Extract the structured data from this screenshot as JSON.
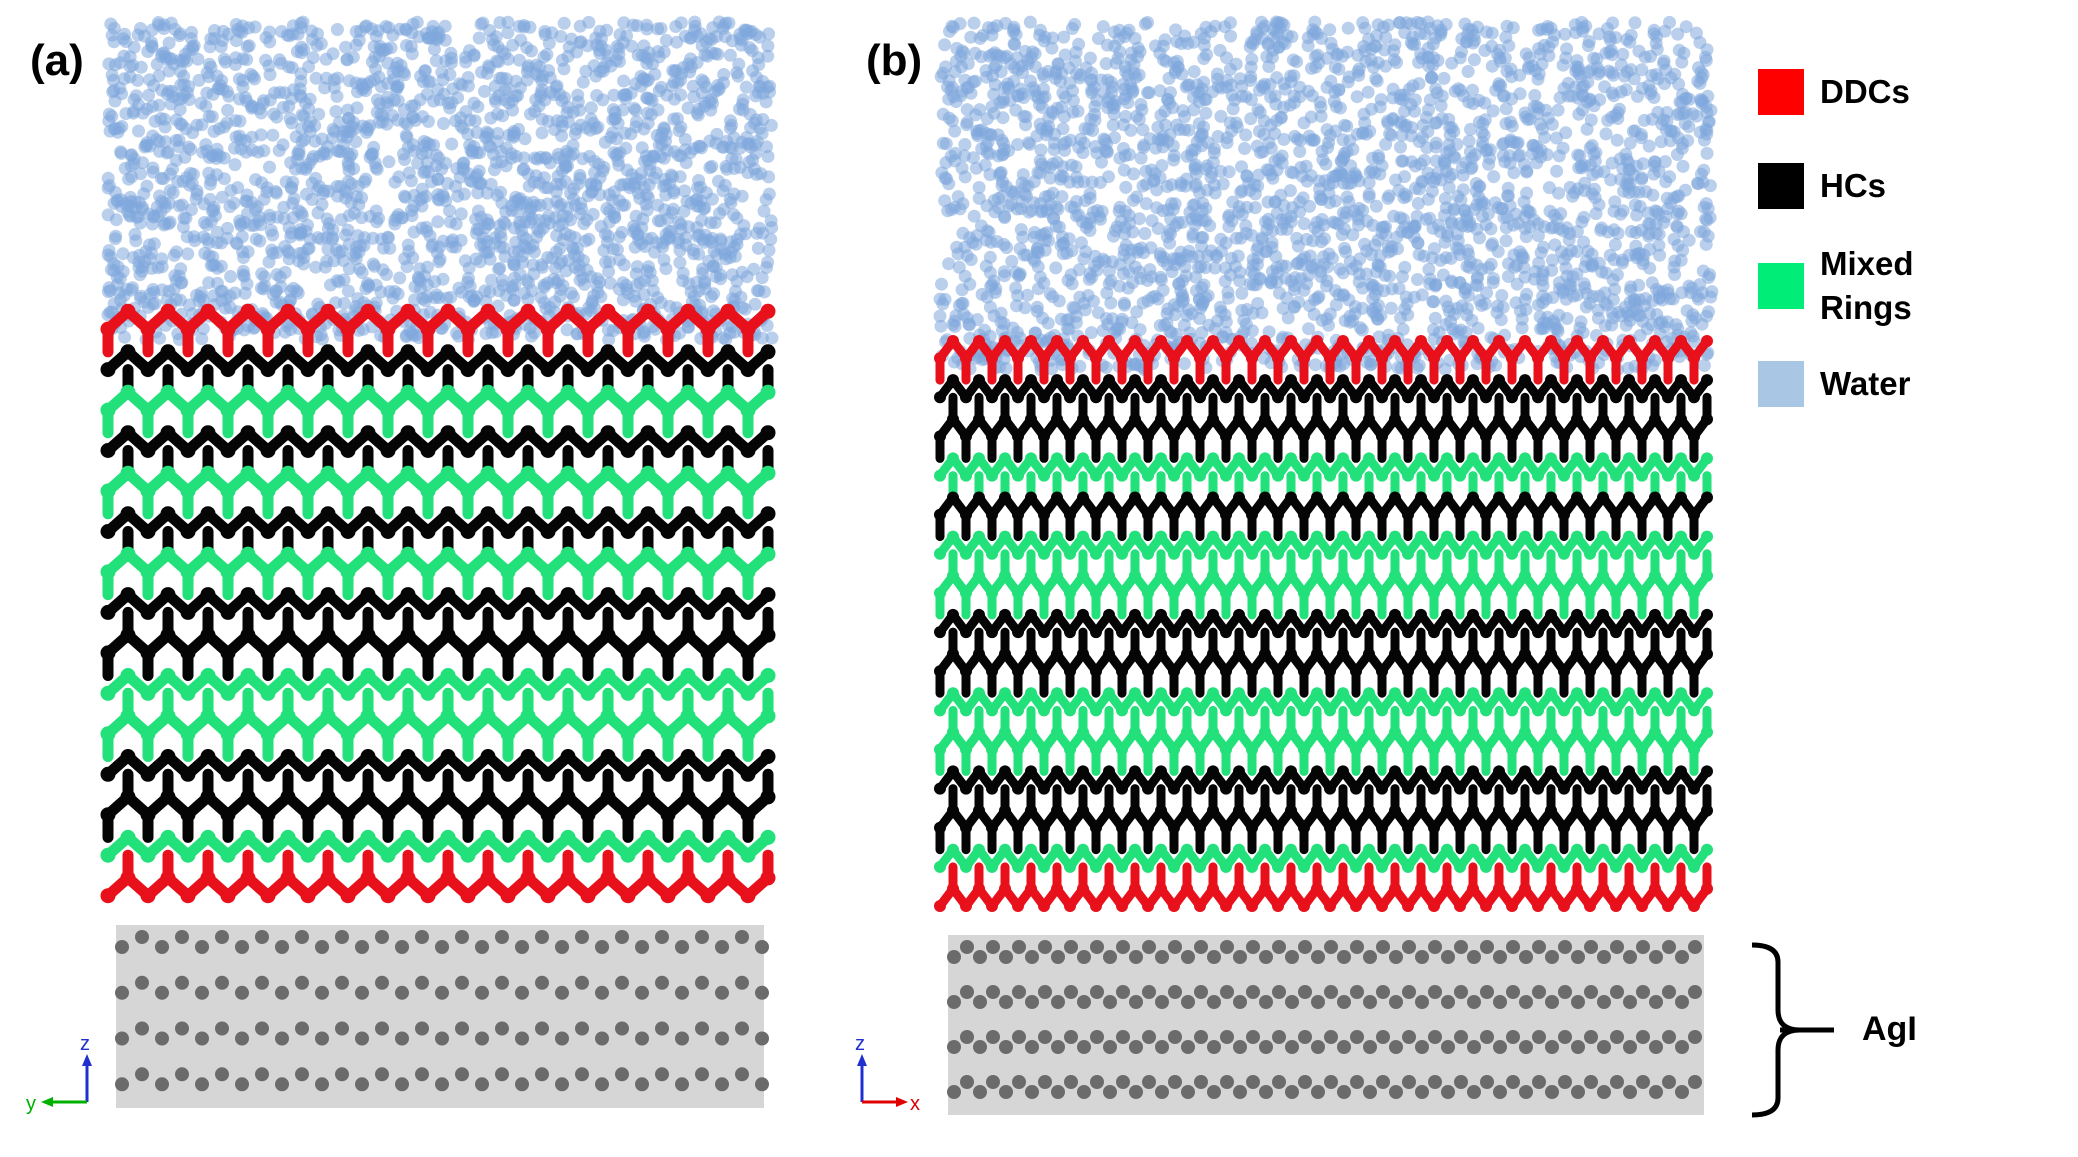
{
  "panels": [
    {
      "label": "(a)",
      "axes": {
        "horizontal": "y",
        "vertical": "z"
      }
    },
    {
      "label": "(b)",
      "axes": {
        "horizontal": "x",
        "vertical": "z"
      }
    }
  ],
  "legend": [
    {
      "label": "DDCs",
      "color": "#ff0000"
    },
    {
      "label": "HCs",
      "color": "#000000"
    },
    {
      "label": "Mixed\nRings",
      "color": "#00ee77"
    },
    {
      "label": "Water",
      "color": "#a9c6e4"
    }
  ],
  "substrate_label": "AgI",
  "colors": {
    "ddc": "#e8101a",
    "hc": "#050505",
    "mixed": "#22e07a",
    "water": "#7fa8dd",
    "substrate_bg": "#d6d6d6",
    "substrate_atom": "#6b6b6b",
    "axis_x": "#e00000",
    "axis_y": "#00b000",
    "axis_z": "#2030d0"
  }
}
